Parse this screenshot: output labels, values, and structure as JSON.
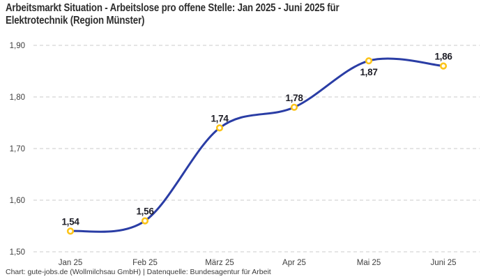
{
  "header": {
    "title_line1": "Arbeitsmarkt Situation - Arbeitslose pro offene Stelle: Jan 2025 - Juni 2025 für",
    "title_line2": "Elektrotechnik (Region Münster)"
  },
  "footer": {
    "credit": "Chart: gute-jobs.de (Wollmilchsau GmbH) | Datenquelle: Bundesagentur für Arbeit"
  },
  "chart_data": {
    "type": "line",
    "title": "Arbeitsmarkt Situation - Arbeitslose pro offene Stelle: Jan 2025 - Juni 2025 für Elektrotechnik (Region Münster)",
    "categories": [
      "Jan 25",
      "Feb 25",
      "März 25",
      "Apr 25",
      "Mai 25",
      "Juni 25"
    ],
    "values": [
      1.54,
      1.56,
      1.74,
      1.78,
      1.87,
      1.86
    ],
    "value_labels": [
      "1,54",
      "1,56",
      "1,74",
      "1,78",
      "1,87",
      "1,86"
    ],
    "label_positions": [
      "above",
      "above",
      "above",
      "above",
      "below",
      "above"
    ],
    "xlabel": "",
    "ylabel": "",
    "ylim": [
      1.5,
      1.9
    ],
    "yticks": [
      {
        "value": 1.5,
        "label": "1,50"
      },
      {
        "value": 1.6,
        "label": "1,60"
      },
      {
        "value": 1.7,
        "label": "1,70"
      },
      {
        "value": 1.8,
        "label": "1,80"
      },
      {
        "value": 1.9,
        "label": "1,90"
      }
    ],
    "grid": "horizontal-dashed",
    "legend": "none",
    "curve": "smooth-spline",
    "colors": {
      "line": "#2a3da5",
      "marker_ring": "#fcc419",
      "marker_fill": "#ffffff",
      "gridline": "#cbcbcb",
      "tick_text": "#3f3f3f",
      "data_label": "#1d1d26",
      "title_text": "#2e2e2e"
    }
  }
}
